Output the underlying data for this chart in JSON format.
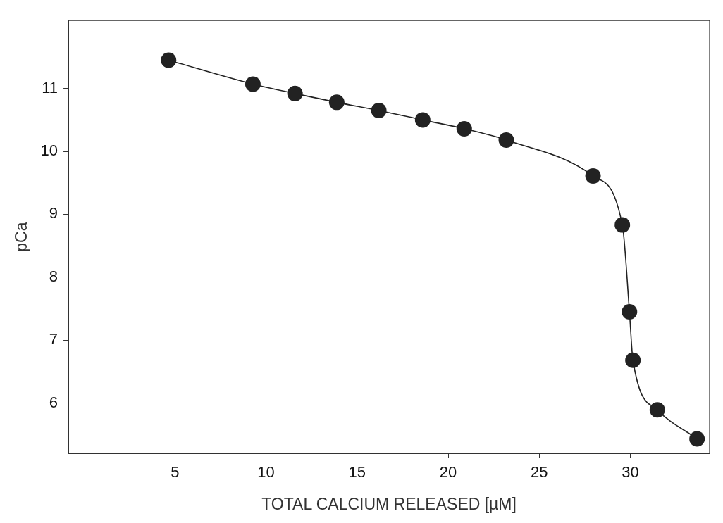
{
  "chart_data": {
    "type": "line",
    "xlabel": "TOTAL CALCIUM RELEASED [µM]",
    "ylabel": "pCa",
    "x": [
      4.65,
      9.28,
      11.59,
      13.88,
      16.19,
      18.6,
      20.88,
      23.19,
      27.95,
      29.56,
      29.95,
      30.14,
      31.48,
      33.66
    ],
    "series": [
      {
        "color": "#222222",
        "values": [
          11.45,
          11.07,
          10.92,
          10.78,
          10.65,
          10.5,
          10.36,
          10.18,
          9.61,
          8.83,
          7.45,
          6.68,
          5.89,
          5.43
        ]
      }
    ],
    "xlim": [
      -0.85,
      34.35
    ],
    "xticks": [
      5,
      10,
      15,
      20,
      25,
      30
    ],
    "ylim": [
      5.2,
      12.08
    ],
    "yticks": [
      6,
      7,
      8,
      9,
      10,
      11
    ],
    "marker": "circle",
    "line_style": "solid",
    "legend": false,
    "grid": false
  }
}
